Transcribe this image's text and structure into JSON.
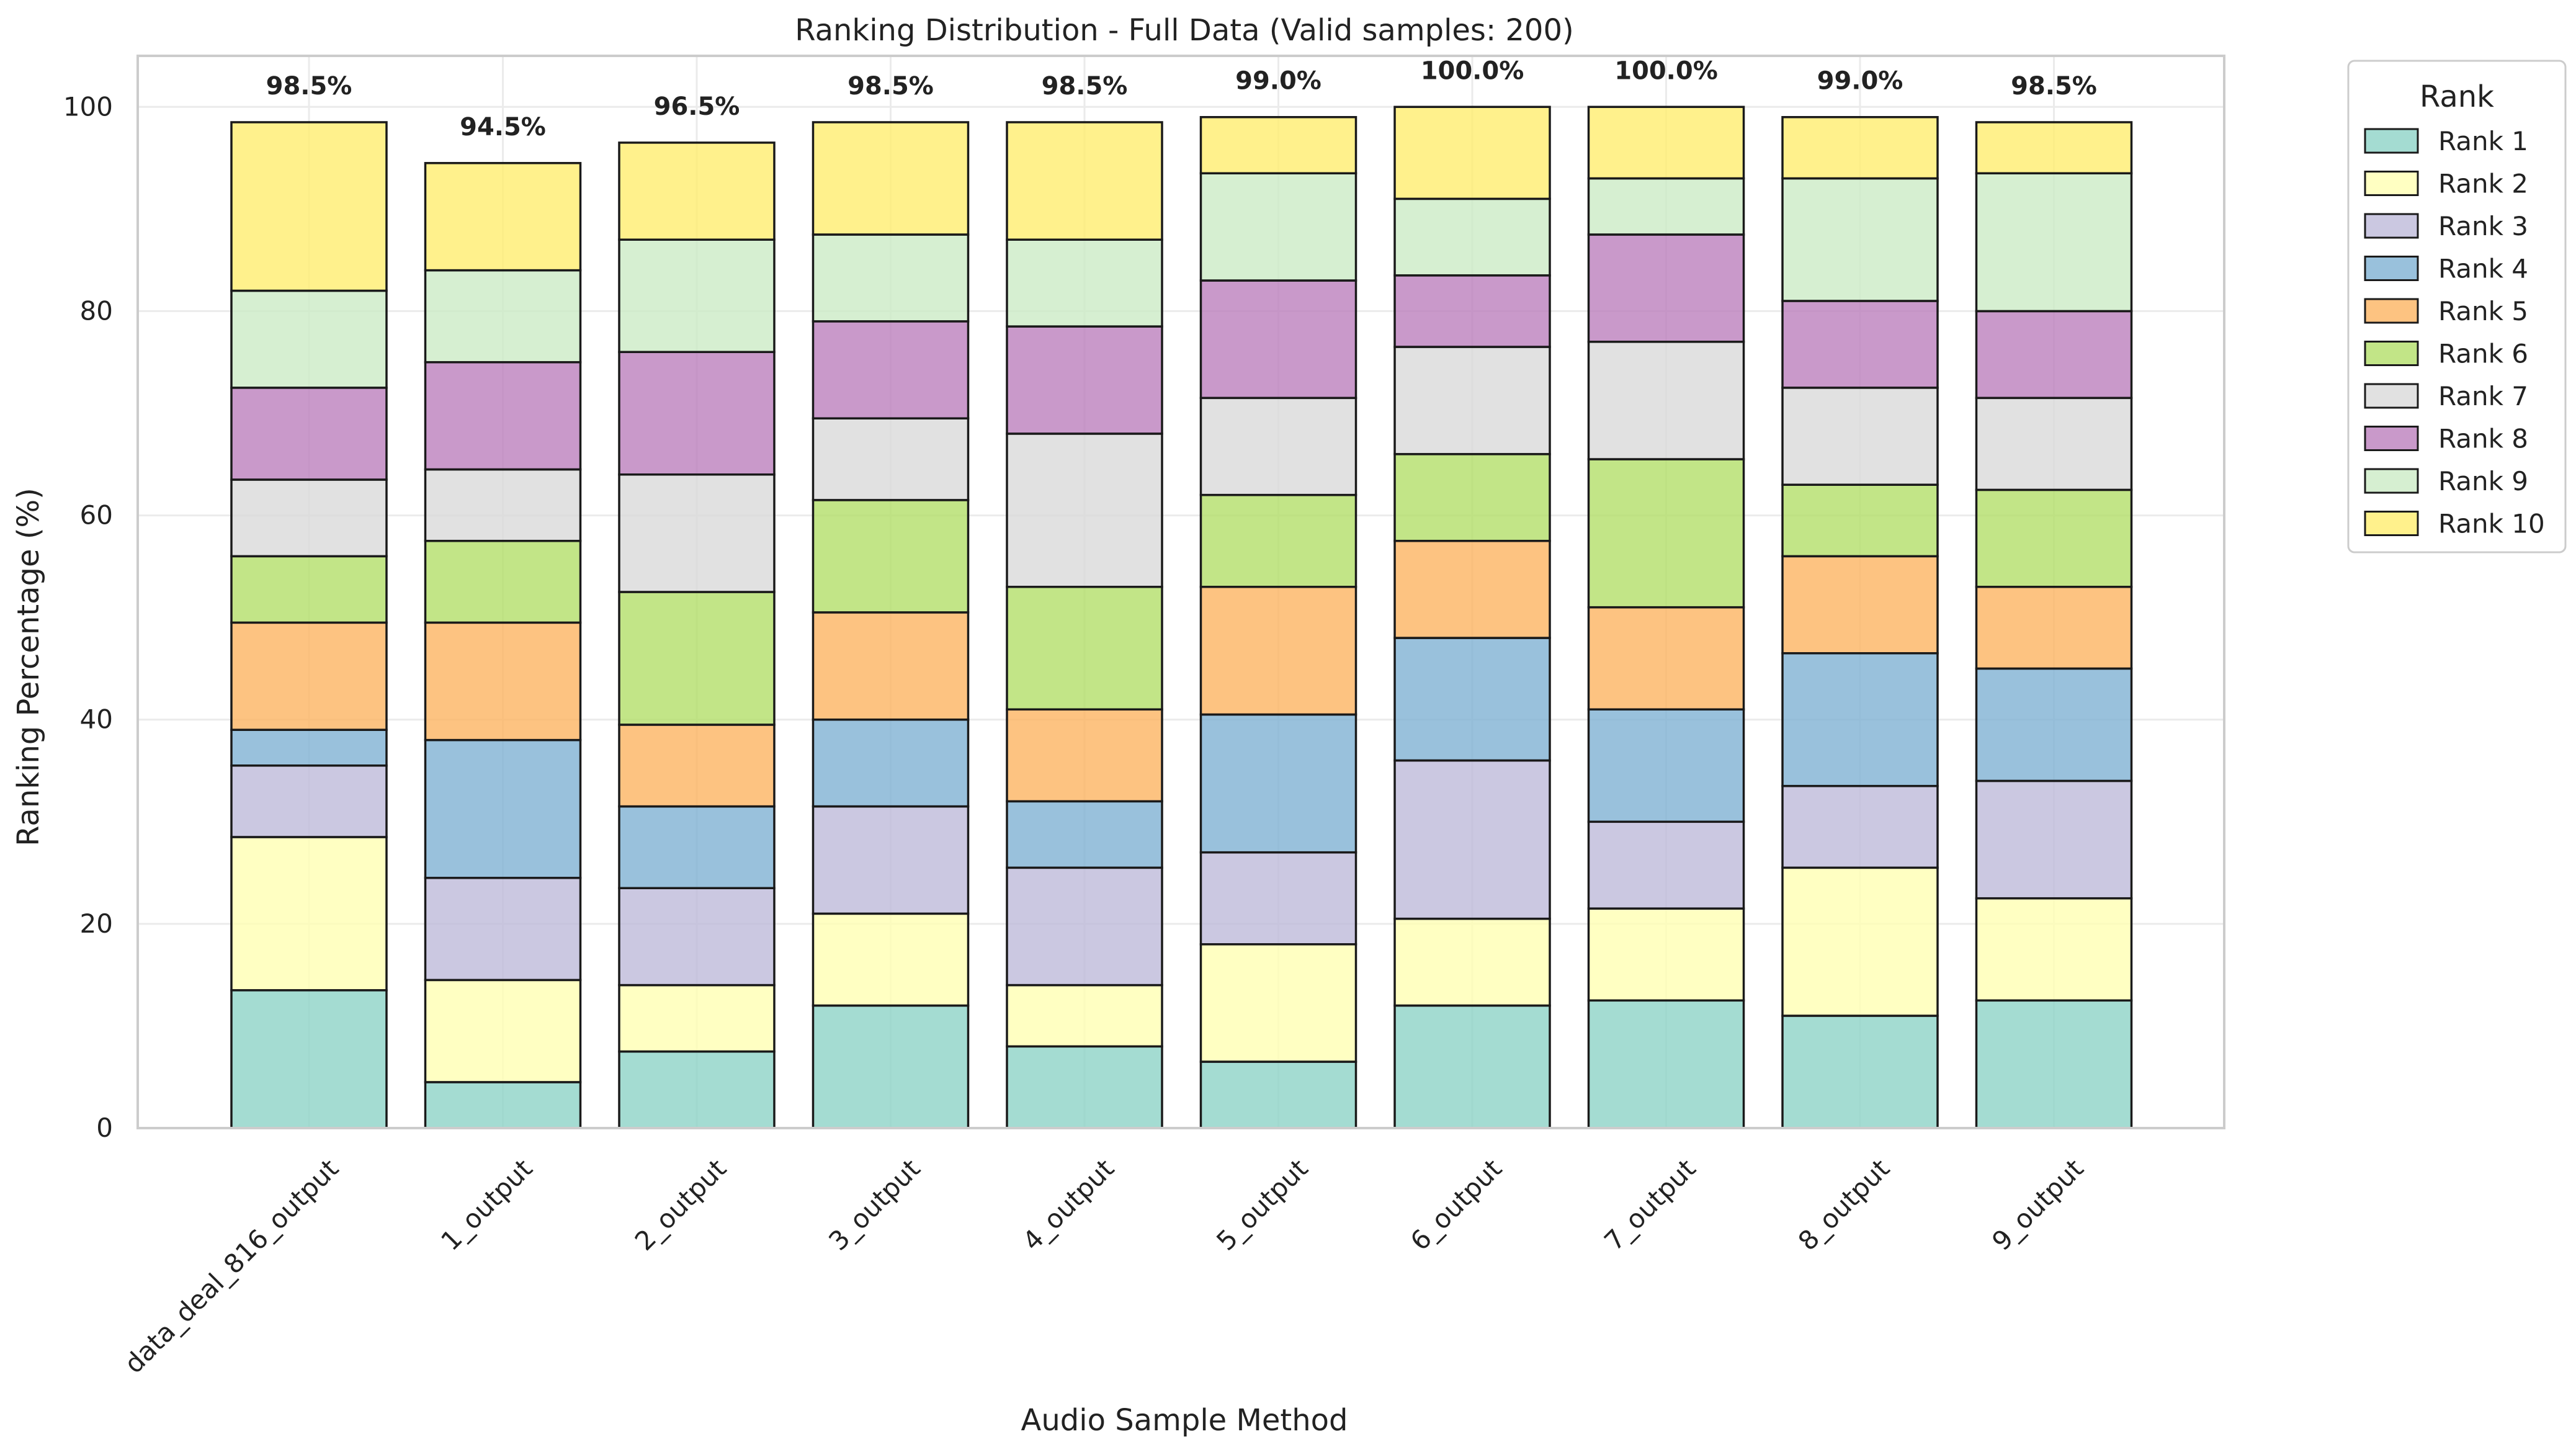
{
  "chart_data": {
    "type": "bar",
    "stacked": true,
    "title": "Ranking Distribution - Full Data (Valid samples: 200)",
    "xlabel": "Audio Sample Method",
    "ylabel": "Ranking Percentage (%)",
    "ylim": [
      0,
      105
    ],
    "yticks": [
      0,
      20,
      40,
      60,
      80,
      100
    ],
    "grid": true,
    "legend_title": "Rank",
    "legend_position": "outside right, top",
    "categories": [
      "data_deal_816_output",
      "1_output",
      "2_output",
      "3_output",
      "4_output",
      "5_output",
      "6_output",
      "7_output",
      "8_output",
      "9_output"
    ],
    "totals": [
      "98.5%",
      "94.5%",
      "96.5%",
      "98.5%",
      "98.5%",
      "99.0%",
      "100.0%",
      "100.0%",
      "99.0%",
      "98.5%"
    ],
    "series": [
      {
        "name": "Rank 1",
        "color": "#8dd3c7",
        "values": [
          13.5,
          4.5,
          7.5,
          12.0,
          8.0,
          6.5,
          12.0,
          12.5,
          11.0,
          12.5
        ]
      },
      {
        "name": "Rank 2",
        "color": "#ffffb3",
        "values": [
          15.0,
          10.0,
          6.5,
          9.0,
          6.0,
          11.5,
          8.5,
          9.0,
          14.5,
          10.0
        ]
      },
      {
        "name": "Rank 3",
        "color": "#bebada",
        "values": [
          7.0,
          10.0,
          9.5,
          10.5,
          11.5,
          9.0,
          15.5,
          8.5,
          8.0,
          11.5
        ]
      },
      {
        "name": "Rank 4",
        "color": "#80b1d3",
        "values": [
          3.5,
          13.5,
          8.0,
          8.5,
          6.5,
          13.5,
          12.0,
          11.0,
          13.0,
          11.0
        ]
      },
      {
        "name": "Rank 5",
        "color": "#fdb462",
        "values": [
          10.5,
          11.5,
          8.0,
          10.5,
          9.0,
          12.5,
          9.5,
          10.0,
          9.5,
          8.0
        ]
      },
      {
        "name": "Rank 6",
        "color": "#b3de69",
        "values": [
          6.5,
          8.0,
          13.0,
          11.0,
          12.0,
          9.0,
          8.5,
          14.5,
          7.0,
          9.5
        ]
      },
      {
        "name": "Rank 7",
        "color": "#d9d9d9",
        "values": [
          7.5,
          7.0,
          11.5,
          8.0,
          15.0,
          9.5,
          10.5,
          11.5,
          9.5,
          9.0
        ]
      },
      {
        "name": "Rank 8",
        "color": "#bc80bd",
        "values": [
          9.0,
          10.5,
          12.0,
          9.5,
          10.5,
          11.5,
          7.0,
          10.5,
          8.5,
          8.5
        ]
      },
      {
        "name": "Rank 9",
        "color": "#ccebc5",
        "values": [
          9.5,
          9.0,
          11.0,
          8.5,
          8.5,
          10.5,
          7.5,
          5.5,
          12.0,
          13.5
        ]
      },
      {
        "name": "Rank 10",
        "color": "#ffed6f",
        "values": [
          16.5,
          10.5,
          9.5,
          11.0,
          11.5,
          5.5,
          9.0,
          7.0,
          6.0,
          5.0
        ]
      }
    ]
  }
}
